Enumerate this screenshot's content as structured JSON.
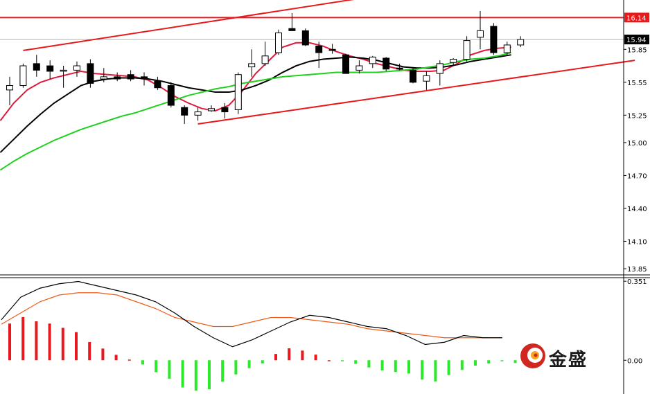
{
  "chart_data": [
    {
      "type": "candlestick",
      "panel": "price",
      "y_axis_ticks": [
        "15.85",
        "15.55",
        "15.25",
        "15.00",
        "14.70",
        "14.40",
        "14.10",
        "13.85"
      ],
      "ylim": [
        13.8,
        16.3
      ],
      "price_badges": [
        {
          "label": "16.14",
          "value": 16.14,
          "color": "#e8191c"
        },
        {
          "label": "15.94",
          "value": 15.94,
          "color": "#000000"
        }
      ],
      "horizontal_lines": [
        {
          "value": 16.14,
          "color": "#e8191c"
        },
        {
          "value": 15.94,
          "color": "#b0b0b0"
        }
      ],
      "trend_lines": [
        {
          "color": "#e8191c",
          "from": {
            "bar": 1,
            "price": 15.84
          },
          "to": {
            "bar": 29.5,
            "price": 16.38
          }
        },
        {
          "color": "#e8191c",
          "from": {
            "bar": 14,
            "price": 15.17
          },
          "to": {
            "bar": 46.5,
            "price": 15.75
          }
        }
      ],
      "candles": [
        {
          "o": 15.48,
          "h": 15.6,
          "l": 15.34,
          "c": 15.52
        },
        {
          "o": 15.52,
          "h": 15.72,
          "l": 15.5,
          "c": 15.7
        },
        {
          "o": 15.72,
          "h": 15.8,
          "l": 15.6,
          "c": 15.66
        },
        {
          "o": 15.7,
          "h": 15.75,
          "l": 15.58,
          "c": 15.65
        },
        {
          "o": 15.66,
          "h": 15.7,
          "l": 15.5,
          "c": 15.66
        },
        {
          "o": 15.66,
          "h": 15.74,
          "l": 15.6,
          "c": 15.7
        },
        {
          "o": 15.72,
          "h": 15.76,
          "l": 15.5,
          "c": 15.54
        },
        {
          "o": 15.58,
          "h": 15.68,
          "l": 15.55,
          "c": 15.6
        },
        {
          "o": 15.6,
          "h": 15.64,
          "l": 15.56,
          "c": 15.58
        },
        {
          "o": 15.62,
          "h": 15.66,
          "l": 15.56,
          "c": 15.58
        },
        {
          "o": 15.6,
          "h": 15.64,
          "l": 15.52,
          "c": 15.58
        },
        {
          "o": 15.56,
          "h": 15.6,
          "l": 15.48,
          "c": 15.5
        },
        {
          "o": 15.52,
          "h": 15.55,
          "l": 15.32,
          "c": 15.34
        },
        {
          "o": 15.32,
          "h": 15.34,
          "l": 15.17,
          "c": 15.25
        },
        {
          "o": 15.25,
          "h": 15.32,
          "l": 15.2,
          "c": 15.28
        },
        {
          "o": 15.29,
          "h": 15.34,
          "l": 15.28,
          "c": 15.31
        },
        {
          "o": 15.32,
          "h": 15.36,
          "l": 15.22,
          "c": 15.28
        },
        {
          "o": 15.3,
          "h": 15.64,
          "l": 15.26,
          "c": 15.62
        },
        {
          "o": 15.69,
          "h": 15.85,
          "l": 15.6,
          "c": 15.72
        },
        {
          "o": 15.72,
          "h": 15.92,
          "l": 15.7,
          "c": 15.79
        },
        {
          "o": 15.82,
          "h": 16.03,
          "l": 15.8,
          "c": 16.0
        },
        {
          "o": 16.04,
          "h": 16.18,
          "l": 16.03,
          "c": 16.02
        },
        {
          "o": 16.02,
          "h": 16.04,
          "l": 15.88,
          "c": 15.89
        },
        {
          "o": 15.88,
          "h": 15.92,
          "l": 15.68,
          "c": 15.82
        },
        {
          "o": 15.85,
          "h": 15.9,
          "l": 15.81,
          "c": 15.84
        },
        {
          "o": 15.8,
          "h": 15.81,
          "l": 15.63,
          "c": 15.63
        },
        {
          "o": 15.66,
          "h": 15.75,
          "l": 15.63,
          "c": 15.7
        },
        {
          "o": 15.72,
          "h": 15.79,
          "l": 15.68,
          "c": 15.78
        },
        {
          "o": 15.77,
          "h": 15.78,
          "l": 15.65,
          "c": 15.67
        },
        {
          "o": 15.68,
          "h": 15.72,
          "l": 15.66,
          "c": 15.67
        },
        {
          "o": 15.66,
          "h": 15.68,
          "l": 15.54,
          "c": 15.55
        },
        {
          "o": 15.56,
          "h": 15.65,
          "l": 15.48,
          "c": 15.61
        },
        {
          "o": 15.63,
          "h": 15.75,
          "l": 15.52,
          "c": 15.72
        },
        {
          "o": 15.73,
          "h": 15.77,
          "l": 15.7,
          "c": 15.76
        },
        {
          "o": 15.76,
          "h": 15.97,
          "l": 15.74,
          "c": 15.93
        },
        {
          "o": 15.96,
          "h": 16.2,
          "l": 15.85,
          "c": 16.02
        },
        {
          "o": 16.06,
          "h": 16.09,
          "l": 15.8,
          "c": 15.82
        },
        {
          "o": 15.82,
          "h": 15.92,
          "l": 15.8,
          "c": 15.89
        },
        {
          "o": 15.89,
          "h": 15.97,
          "l": 15.87,
          "c": 15.94
        }
      ],
      "moving_averages": [
        {
          "color": "#e0183c",
          "values": [
            15.2,
            15.36,
            15.48,
            15.55,
            15.59,
            15.62,
            15.65,
            15.63,
            15.62,
            15.61,
            15.6,
            15.57,
            15.5,
            15.42,
            15.36,
            15.31,
            15.29,
            15.34,
            15.47,
            15.63,
            15.75,
            15.87,
            15.91,
            15.91,
            15.88,
            15.83,
            15.79,
            15.76,
            15.72,
            15.69,
            15.66,
            15.65,
            15.65,
            15.66,
            15.72,
            15.8,
            15.84,
            15.86,
            15.87
          ]
        },
        {
          "color": "#000000",
          "values": [
            14.91,
            15.03,
            15.15,
            15.26,
            15.36,
            15.44,
            15.52,
            15.56,
            15.58,
            15.59,
            15.59,
            15.58,
            15.56,
            15.53,
            15.5,
            15.48,
            15.46,
            15.46,
            15.48,
            15.52,
            15.57,
            15.64,
            15.7,
            15.74,
            15.76,
            15.77,
            15.78,
            15.77,
            15.75,
            15.72,
            15.69,
            15.68,
            15.68,
            15.69,
            15.71,
            15.74,
            15.76,
            15.78,
            15.8
          ]
        },
        {
          "color": "#1ed11e",
          "values": [
            14.75,
            14.83,
            14.9,
            14.96,
            15.02,
            15.07,
            15.12,
            15.16,
            15.2,
            15.24,
            15.27,
            15.31,
            15.35,
            15.39,
            15.43,
            15.46,
            15.49,
            15.51,
            15.54,
            15.56,
            15.58,
            15.6,
            15.61,
            15.62,
            15.63,
            15.64,
            15.64,
            15.64,
            15.64,
            15.65,
            15.66,
            15.67,
            15.69,
            15.71,
            15.74,
            15.76,
            15.77,
            15.79,
            15.82
          ]
        }
      ]
    },
    {
      "type": "macd",
      "panel": "indicator",
      "y_axis_ticks": [
        "0.351",
        "0.00"
      ],
      "ylim": [
        -0.15,
        0.37
      ],
      "macd_line": {
        "color": "#000000",
        "values": [
          0.18,
          0.28,
          0.32,
          0.34,
          0.35,
          0.33,
          0.31,
          0.29,
          0.26,
          0.21,
          0.15,
          0.1,
          0.06,
          0.09,
          0.13,
          0.17,
          0.2,
          0.19,
          0.17,
          0.15,
          0.14,
          0.11,
          0.07,
          0.08,
          0.11,
          0.1,
          0.1
        ]
      },
      "signal_line": {
        "color": "#f05a14",
        "values": [
          0.16,
          0.21,
          0.26,
          0.29,
          0.3,
          0.3,
          0.29,
          0.26,
          0.23,
          0.19,
          0.17,
          0.15,
          0.15,
          0.17,
          0.19,
          0.19,
          0.18,
          0.17,
          0.16,
          0.14,
          0.13,
          0.12,
          0.11,
          0.1,
          0.1,
          0.1,
          0.1
        ]
      },
      "histogram": [
        0.163,
        0.192,
        0.173,
        0.163,
        0.144,
        0.125,
        0.081,
        0.052,
        0.024,
        0.003,
        -0.019,
        -0.053,
        -0.082,
        -0.121,
        -0.135,
        -0.129,
        -0.095,
        -0.063,
        -0.035,
        -0.014,
        0.028,
        0.053,
        0.043,
        0.025,
        0.0,
        -0.004,
        -0.016,
        -0.032,
        -0.045,
        -0.052,
        -0.059,
        -0.086,
        -0.094,
        -0.066,
        -0.043,
        -0.024,
        -0.014,
        -0.003,
        -0.012,
        -0.002
      ],
      "hist_positive_color": "#e8191c",
      "hist_negative_color": "#2ae82a"
    }
  ],
  "logo": {
    "text": "金盛",
    "colors": {
      "primary": "#d02820",
      "accent": "#f5a623"
    }
  },
  "colors": {
    "axis": "#000000",
    "candle_up_fill": "#ffffff",
    "candle_down_fill": "#000000"
  }
}
